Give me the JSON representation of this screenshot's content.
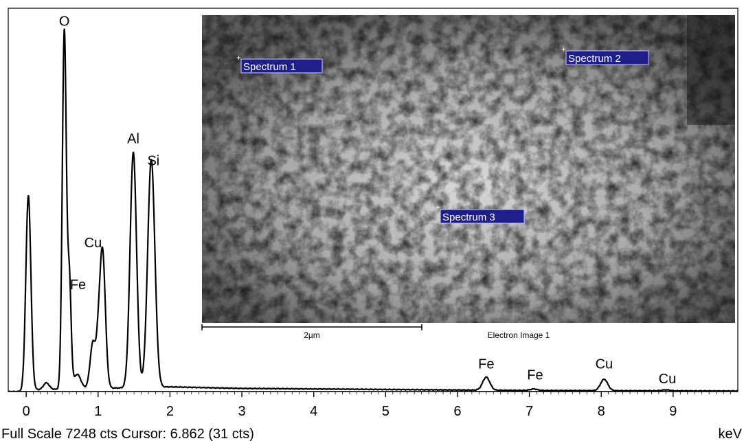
{
  "chart_data": {
    "type": "line",
    "xlabel": "keV",
    "xlim": [
      -0.25,
      9.9
    ],
    "ylim": [
      0,
      7248
    ],
    "x_ticks": [
      0,
      1,
      2,
      3,
      4,
      5,
      6,
      7,
      8,
      9
    ],
    "grid": false,
    "footer": "Full Scale 7248 cts Cursor: 6.862  (31 cts)",
    "series": [
      {
        "peaks": [
          {
            "center": 0.03,
            "height": 3740,
            "width": 0.035
          },
          {
            "center": 0.28,
            "height": 130,
            "width": 0.04
          },
          {
            "center": 0.53,
            "height": 6900,
            "width": 0.028
          },
          {
            "center": 0.6,
            "height": 2070,
            "width": 0.025
          },
          {
            "center": 0.71,
            "height": 280,
            "width": 0.05
          },
          {
            "center": 0.93,
            "height": 900,
            "width": 0.04
          },
          {
            "center": 1.0,
            "height": 430,
            "width": 0.025
          },
          {
            "center": 1.06,
            "height": 2690,
            "width": 0.04
          },
          {
            "center": 1.49,
            "height": 4530,
            "width": 0.045
          },
          {
            "center": 1.74,
            "height": 4390,
            "width": 0.05
          },
          {
            "center": 6.4,
            "height": 250,
            "width": 0.05
          },
          {
            "center": 7.06,
            "height": 30,
            "width": 0.05
          },
          {
            "center": 8.04,
            "height": 220,
            "width": 0.05
          },
          {
            "center": 8.9,
            "height": 20,
            "width": 0.05
          }
        ],
        "background": [
          [
            0,
            30
          ],
          [
            2,
            90
          ],
          [
            3,
            60
          ],
          [
            5,
            40
          ],
          [
            7,
            20
          ],
          [
            9.9,
            10
          ]
        ]
      }
    ],
    "annotations": [
      {
        "text": "O",
        "x": 0.53,
        "y": 7040
      },
      {
        "text": "Al",
        "x": 1.49,
        "y": 4780
      },
      {
        "text": "Si",
        "x": 1.77,
        "y": 4360
      },
      {
        "text": "Cu",
        "x": 0.93,
        "y": 2780
      },
      {
        "text": "Fe",
        "x": 0.72,
        "y": 1970
      },
      {
        "text": "Fe",
        "x": 6.4,
        "y": 440
      },
      {
        "text": "Fe",
        "x": 7.08,
        "y": 230
      },
      {
        "text": "Cu",
        "x": 8.04,
        "y": 440
      },
      {
        "text": "Cu",
        "x": 8.92,
        "y": 160
      }
    ]
  },
  "inset": {
    "caption": "Electron Image 1",
    "scale_bar": "2µm",
    "spectra": [
      "Spectrum 1",
      "Spectrum 2",
      "Spectrum 3"
    ]
  }
}
